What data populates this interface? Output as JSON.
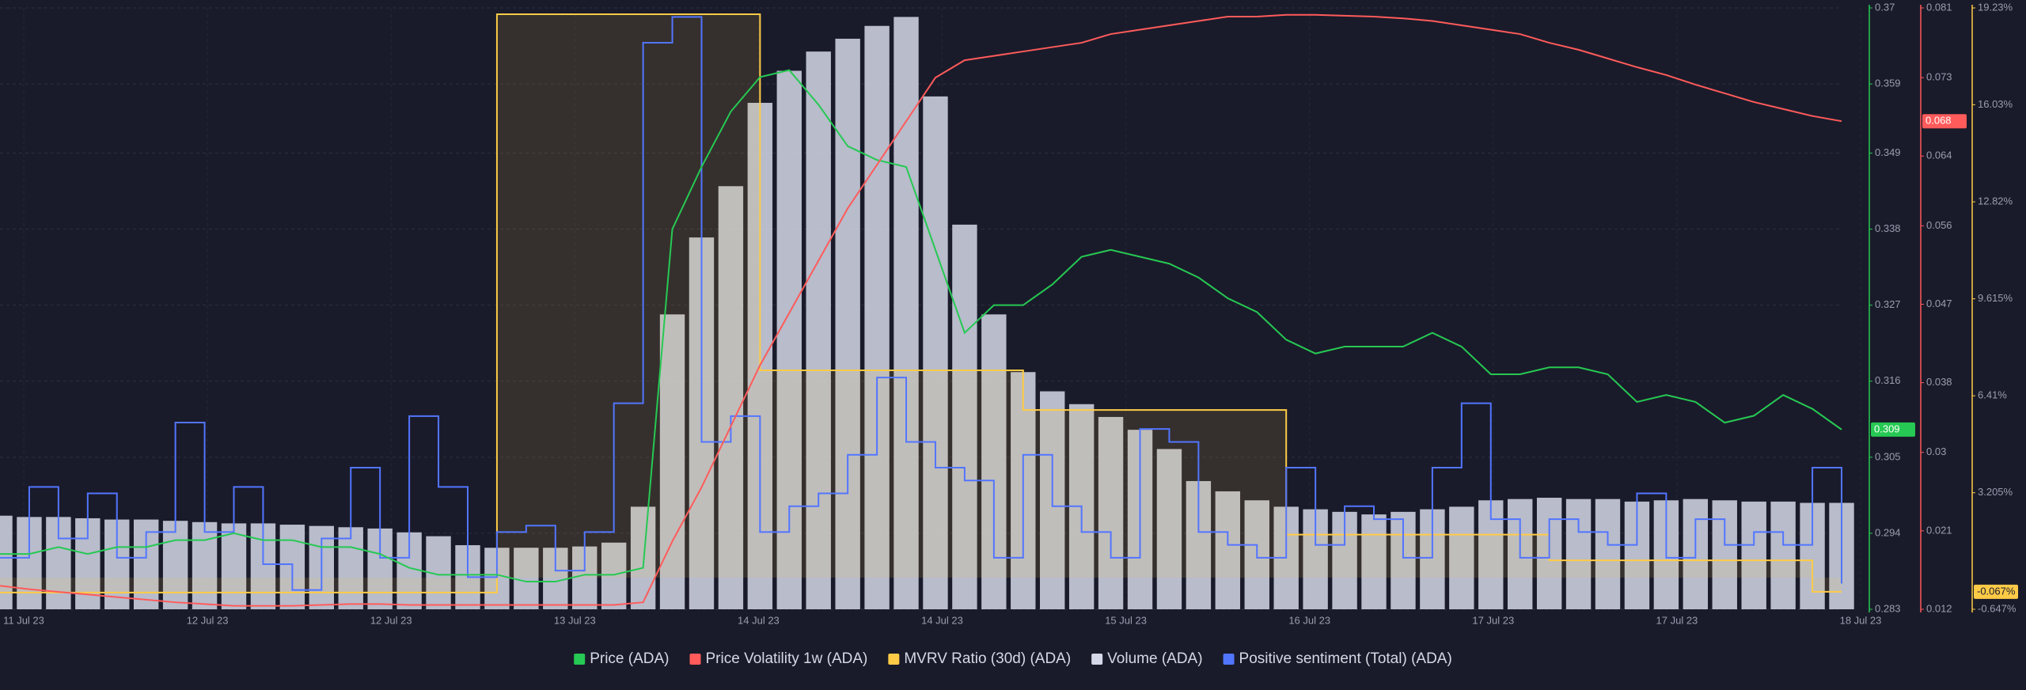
{
  "chart_data": {
    "type": "multi",
    "xticks": [
      "11 Jul 23",
      "12 Jul 23",
      "12 Jul 23",
      "13 Jul 23",
      "14 Jul 23",
      "14 Jul 23",
      "15 Jul 23",
      "16 Jul 23",
      "17 Jul 23",
      "17 Jul 23",
      "18 Jul 23"
    ],
    "ylim": [
      0.283,
      0.37
    ],
    "yticks": [
      0.283,
      0.294,
      0.305,
      0.316,
      0.327,
      0.338,
      0.349,
      0.359,
      0.37
    ],
    "y2lim": [
      0.012,
      0.081
    ],
    "y2ticks": [
      0.012,
      0.021,
      0.03,
      0.038,
      0.047,
      0.056,
      0.064,
      0.073,
      0.081
    ],
    "y3lim": [
      -0.647,
      19.23
    ],
    "y3ticks": [
      {
        "value": -0.647,
        "label": "-0.647%"
      },
      {
        "value": 3.205,
        "label": "3.205%"
      },
      {
        "value": 6.41,
        "label": "6.41%"
      },
      {
        "value": 9.615,
        "label": "9.615%"
      },
      {
        "value": 12.82,
        "label": "12.82%"
      },
      {
        "value": 16.03,
        "label": "16.03%"
      },
      {
        "value": 19.23,
        "label": "19.23%"
      }
    ],
    "grid": true,
    "series": [
      {
        "name": "Price (ADA)",
        "color": "#26c953",
        "kind": "line",
        "axis": "y",
        "values": [
          0.291,
          0.291,
          0.292,
          0.291,
          0.292,
          0.292,
          0.293,
          0.293,
          0.294,
          0.293,
          0.293,
          0.292,
          0.292,
          0.291,
          0.289,
          0.288,
          0.288,
          0.288,
          0.287,
          0.287,
          0.288,
          0.288,
          0.289,
          0.338,
          0.347,
          0.355,
          0.36,
          0.361,
          0.356,
          0.35,
          0.348,
          0.347,
          0.335,
          0.323,
          0.327,
          0.327,
          0.33,
          0.334,
          0.335,
          0.334,
          0.333,
          0.331,
          0.328,
          0.326,
          0.322,
          0.32,
          0.321,
          0.321,
          0.321,
          0.323,
          0.321,
          0.317,
          0.317,
          0.318,
          0.318,
          0.317,
          0.313,
          0.314,
          0.313,
          0.31,
          0.311,
          0.314,
          0.312,
          0.309
        ]
      },
      {
        "name": "Price Volatility 1w (ADA)",
        "color": "#ff5b5b",
        "kind": "line",
        "axis": "y2",
        "values": [
          0.0147,
          0.0143,
          0.014,
          0.0137,
          0.0134,
          0.0131,
          0.0128,
          0.0126,
          0.0124,
          0.0124,
          0.0124,
          0.0125,
          0.0126,
          0.0126,
          0.0125,
          0.0125,
          0.0125,
          0.0125,
          0.0125,
          0.0125,
          0.0125,
          0.0125,
          0.0128,
          0.0198,
          0.026,
          0.033,
          0.04,
          0.046,
          0.052,
          0.058,
          0.063,
          0.068,
          0.073,
          0.075,
          0.0755,
          0.076,
          0.0765,
          0.077,
          0.078,
          0.0785,
          0.079,
          0.0795,
          0.08,
          0.08,
          0.0802,
          0.0802,
          0.0801,
          0.08,
          0.0798,
          0.0795,
          0.079,
          0.0785,
          0.078,
          0.077,
          0.0762,
          0.0752,
          0.0742,
          0.0733,
          0.0722,
          0.0712,
          0.0702,
          0.0694,
          0.0686,
          0.068
        ]
      },
      {
        "name": "MVRV Ratio (30d) (ADA)",
        "color": "#ffcb47",
        "kind": "step",
        "axis": "y3",
        "values": [
          -0.095,
          -0.095,
          -0.095,
          -0.095,
          -0.095,
          -0.095,
          -0.095,
          -0.095,
          -0.095,
          -0.095,
          -0.095,
          -0.095,
          -0.095,
          -0.095,
          -0.095,
          -0.095,
          -0.095,
          19.02,
          19.02,
          19.02,
          19.02,
          19.02,
          19.02,
          19.02,
          19.02,
          19.02,
          7.25,
          7.25,
          7.25,
          7.25,
          7.25,
          7.25,
          7.25,
          7.25,
          7.25,
          5.94,
          5.94,
          5.94,
          5.94,
          5.94,
          5.94,
          5.94,
          5.94,
          5.94,
          1.82,
          1.82,
          1.82,
          1.82,
          1.82,
          1.82,
          1.82,
          1.82,
          1.82,
          0.97,
          0.97,
          0.97,
          0.97,
          0.97,
          0.97,
          0.97,
          0.97,
          0.97,
          -0.067,
          -0.067
        ],
        "value_labels": [
          null,
          null,
          null,
          null,
          null,
          null,
          null,
          null,
          null,
          null,
          null,
          null,
          null,
          null,
          null,
          null,
          null,
          null,
          null,
          null,
          null,
          null,
          null,
          null,
          null,
          null,
          null,
          null,
          null,
          null,
          null,
          null,
          null,
          null,
          null,
          null,
          null,
          null,
          null,
          null,
          null,
          null,
          null,
          null,
          null,
          null,
          null,
          null,
          null,
          null,
          null,
          null,
          null,
          null,
          null,
          null,
          null,
          null,
          null,
          null,
          null,
          null,
          null,
          "-0.067%"
        ]
      },
      {
        "name": "Volume (ADA)",
        "color": "#d5d8e8",
        "kind": "bars",
        "values": [
          73,
          72,
          72,
          71,
          70,
          70,
          69,
          68,
          67,
          67,
          66,
          65,
          64,
          63,
          60,
          57,
          50,
          48,
          48,
          48,
          49,
          52,
          80,
          230,
          290,
          330,
          395,
          420,
          435,
          445,
          455,
          462,
          400,
          300,
          230,
          185,
          170,
          160,
          150,
          140,
          125,
          100,
          92,
          85,
          80,
          78,
          76,
          74,
          76,
          78,
          80,
          85,
          86,
          87,
          86,
          86,
          84,
          85,
          86,
          85,
          84,
          84,
          83,
          83
        ]
      },
      {
        "name": "Positive sentiment (Total) (ADA)",
        "color": "#5275ff",
        "kind": "step",
        "values": [
          40,
          95,
          55,
          90,
          40,
          60,
          145,
          60,
          95,
          35,
          15,
          55,
          110,
          40,
          150,
          95,
          25,
          60,
          65,
          30,
          60,
          160,
          440,
          460,
          130,
          150,
          60,
          80,
          90,
          120,
          180,
          130,
          110,
          100,
          40,
          120,
          80,
          60,
          40,
          140,
          130,
          60,
          50,
          40,
          110,
          50,
          80,
          70,
          40,
          110,
          160,
          70,
          40,
          70,
          60,
          50,
          90,
          40,
          70,
          50,
          60,
          50,
          110,
          20
        ]
      }
    ]
  }
}
